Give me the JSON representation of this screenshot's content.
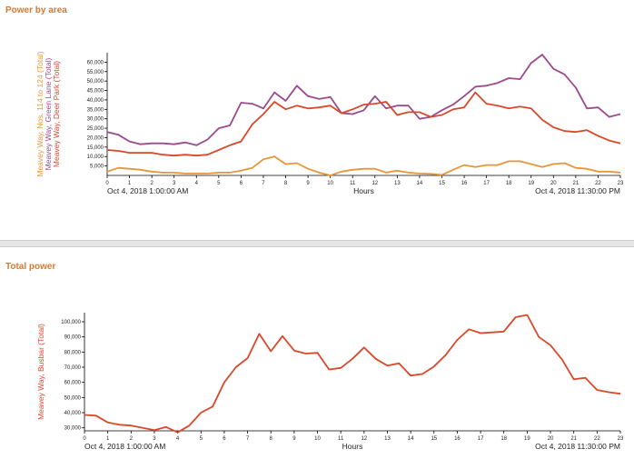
{
  "panels": {
    "power_by_area": {
      "title": "Power by area"
    },
    "total_power": {
      "title": "Total power"
    }
  },
  "chart_data": [
    {
      "type": "line",
      "title": "Power by area",
      "xlabel": "Hours",
      "x_start_label": "Oct 4, 2018 1:00:00 AM",
      "x_end_label": "Oct 4, 2018 11:30:00 PM",
      "x_ticks": [
        "0",
        "1",
        "2",
        "3",
        "4",
        "5",
        "6",
        "7",
        "8",
        "9",
        "10",
        "11",
        "12",
        "13",
        "14",
        "15",
        "16",
        "17",
        "18",
        "19",
        "20",
        "21",
        "22",
        "23"
      ],
      "xlim": [
        0,
        23
      ],
      "ylim": [
        0,
        65000
      ],
      "y_ticks": [
        5000,
        10000,
        15000,
        20000,
        25000,
        30000,
        35000,
        40000,
        45000,
        50000,
        55000,
        60000
      ],
      "y_tick_labels": [
        "5,000",
        "10,000",
        "15,000",
        "20,000",
        "25,000",
        "30,000",
        "35,000",
        "40,000",
        "45,000",
        "50,000",
        "55,000",
        "60,000"
      ],
      "x": [
        0,
        0.5,
        1,
        1.5,
        2,
        2.5,
        3,
        3.5,
        4,
        4.5,
        5,
        5.5,
        6,
        6.5,
        7,
        7.5,
        8,
        8.5,
        9,
        9.5,
        10,
        10.5,
        11,
        11.5,
        12,
        12.5,
        13,
        13.5,
        14,
        14.5,
        15,
        15.5,
        16,
        16.5,
        17,
        17.5,
        18,
        18.5,
        19,
        19.5,
        20,
        20.5,
        21,
        21.5,
        22,
        22.5,
        23
      ],
      "series": [
        {
          "name": "Meavey Way, Nos. 114 to 124 (Total)",
          "color": "#e8953a",
          "values": [
            2000,
            4000,
            3500,
            3000,
            2000,
            1500,
            1500,
            1000,
            1000,
            1000,
            1500,
            1500,
            2500,
            4000,
            8500,
            10000,
            6000,
            6500,
            3500,
            1500,
            0,
            2000,
            3000,
            3500,
            3500,
            1500,
            2500,
            1500,
            1000,
            800,
            300,
            3000,
            5500,
            4500,
            5500,
            5500,
            7500,
            7500,
            6000,
            4500,
            6000,
            6500,
            4000,
            3500,
            2000,
            2000,
            1500
          ]
        },
        {
          "name": "Meavey Way, Green Lane (Total)",
          "color": "#9b4a8e",
          "values": [
            23000,
            21500,
            18000,
            16500,
            17000,
            17000,
            16500,
            17500,
            16000,
            19000,
            25000,
            26500,
            38500,
            38000,
            35500,
            44000,
            39500,
            47500,
            42000,
            40500,
            41500,
            33000,
            32500,
            34500,
            42000,
            35500,
            37000,
            37000,
            30000,
            31000,
            34500,
            37500,
            42000,
            47000,
            47500,
            49000,
            51500,
            51000,
            59500,
            64000,
            56500,
            53500,
            46500,
            35500,
            36000,
            31000,
            32500
          ]
        },
        {
          "name": "Meavey Way, Deer Park (Total)",
          "color": "#d9482b",
          "values": [
            13500,
            13000,
            12000,
            12000,
            12000,
            11000,
            10500,
            11000,
            10500,
            11000,
            13500,
            16000,
            18000,
            27000,
            32500,
            39000,
            35000,
            37000,
            35500,
            36000,
            37000,
            33000,
            35000,
            37500,
            38000,
            39000,
            32000,
            33500,
            33500,
            31000,
            32000,
            35000,
            36000,
            44000,
            38000,
            37000,
            35500,
            36500,
            35500,
            29500,
            25500,
            23500,
            23000,
            24000,
            21000,
            18500,
            17000
          ]
        }
      ]
    },
    {
      "type": "line",
      "title": "Total power",
      "xlabel": "Hours",
      "x_start_label": "Oct 4, 2018 1:00:00 AM",
      "x_end_label": "Oct 4, 2018 11:30:00 PM",
      "x_ticks": [
        "0",
        "1",
        "2",
        "3",
        "4",
        "5",
        "6",
        "7",
        "8",
        "9",
        "10",
        "11",
        "12",
        "13",
        "14",
        "15",
        "16",
        "17",
        "18",
        "19",
        "20",
        "21",
        "22",
        "23"
      ],
      "xlim": [
        0,
        23
      ],
      "ylim": [
        28000,
        106000
      ],
      "y_ticks": [
        30000,
        40000,
        50000,
        60000,
        70000,
        80000,
        90000,
        100000
      ],
      "y_tick_labels": [
        "30,000",
        "40,000",
        "50,000",
        "60,000",
        "70,000",
        "80,000",
        "90,000",
        "100,000"
      ],
      "x": [
        0,
        0.5,
        1,
        1.5,
        2,
        2.5,
        3,
        3.5,
        4,
        4.5,
        5,
        5.5,
        6,
        6.5,
        7,
        7.5,
        8,
        8.5,
        9,
        9.5,
        10,
        10.5,
        11,
        11.5,
        12,
        12.5,
        13,
        13.5,
        14,
        14.5,
        15,
        15.5,
        16,
        16.5,
        17,
        17.5,
        18,
        18.5,
        19,
        19.5,
        20,
        20.5,
        21,
        21.5,
        22,
        22.5,
        23
      ],
      "series": [
        {
          "name": "Meavey Way, Busbar (Total)",
          "color": "#d9482b",
          "values": [
            38500,
            38000,
            33500,
            32000,
            31500,
            30000,
            28500,
            30500,
            27000,
            31500,
            40000,
            44000,
            60000,
            70000,
            76000,
            92000,
            80500,
            90500,
            81000,
            79000,
            79500,
            68500,
            69500,
            75500,
            83000,
            75500,
            71000,
            72500,
            64500,
            65500,
            70500,
            78000,
            88000,
            95000,
            92500,
            93000,
            93500,
            103000,
            104500,
            90000,
            84500,
            75000,
            62000,
            63000,
            55000,
            53500,
            52500
          ]
        }
      ]
    }
  ]
}
